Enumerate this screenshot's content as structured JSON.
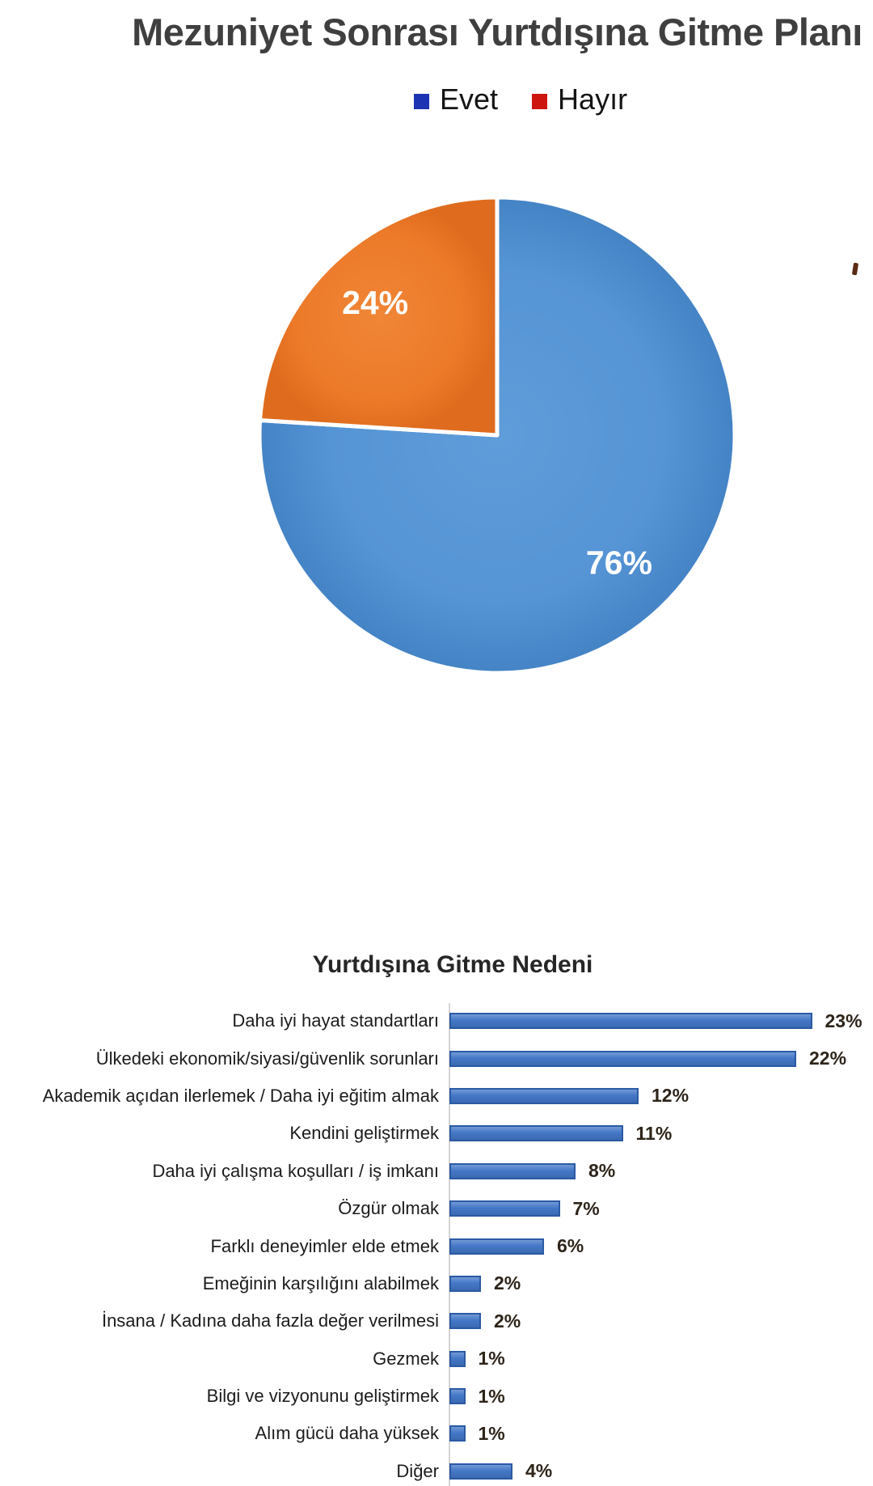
{
  "chart_data": [
    {
      "type": "pie",
      "title": "Mezuniyet Sonrası Yurtdışına Gitme Planı",
      "legend_position": "top",
      "legend": [
        {
          "label": "Evet",
          "swatch_color": "#1c34b3"
        },
        {
          "label": "Hayır",
          "swatch_color": "#ce1611"
        }
      ],
      "slices": [
        {
          "label": "Evet",
          "value": 76,
          "data_label": "76%",
          "fill": "#5594d5",
          "fill_center": "#5f9cda",
          "fill_edge": "#4483c5"
        },
        {
          "label": "Hayır",
          "value": 24,
          "data_label": "24%",
          "fill": "#ec7a29",
          "fill_center": "#f08637",
          "fill_edge": "#df6c1e"
        }
      ],
      "unit": "%",
      "start_angle_deg": 0,
      "clockwise": true
    },
    {
      "type": "bar",
      "orientation": "horizontal",
      "title": "Yurtdışına Gitme Nedeni",
      "rows": [
        {
          "label": "Daha iyi hayat standartları",
          "value": 23,
          "value_label": "23%"
        },
        {
          "label": "Ülkedeki ekonomik/siyasi/güvenlik sorunları",
          "value": 22,
          "value_label": "22%"
        },
        {
          "label": "Akademik açıdan ilerlemek / Daha iyi eğitim almak",
          "value": 12,
          "value_label": "12%"
        },
        {
          "label": "Kendini geliştirmek",
          "value": 11,
          "value_label": "11%"
        },
        {
          "label": "Daha iyi çalışma koşulları / iş imkanı",
          "value": 8,
          "value_label": "8%"
        },
        {
          "label": "Özgür olmak",
          "value": 7,
          "value_label": "7%"
        },
        {
          "label": "Farklı deneyimler elde etmek",
          "value": 6,
          "value_label": "6%"
        },
        {
          "label": "Emeğinin karşılığını alabilmek",
          "value": 2,
          "value_label": "2%"
        },
        {
          "label": "İnsana / Kadına daha fazla değer verilmesi",
          "value": 2,
          "value_label": "2%"
        },
        {
          "label": "Gezmek",
          "value": 1,
          "value_label": "1%"
        },
        {
          "label": "Bilgi ve vizyonunu geliştirmek",
          "value": 1,
          "value_label": "1%"
        },
        {
          "label": "Alım gücü daha yüksek",
          "value": 1,
          "value_label": "1%"
        },
        {
          "label": "Diğer",
          "value": 4,
          "value_label": "4%"
        }
      ],
      "unit": "%",
      "xlim": [
        0,
        25
      ],
      "grid": false,
      "data_labels": true,
      "bar_fill": "#4478c8",
      "bar_border": "#2b5aa5",
      "axis_color": "#d4d4d4"
    }
  ]
}
